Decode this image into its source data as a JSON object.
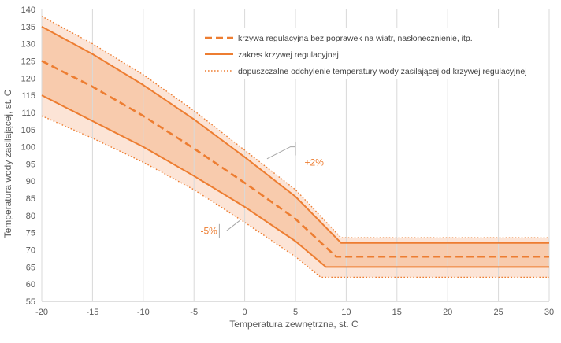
{
  "chart_data": {
    "type": "line",
    "xlabel": "Temperatura zewnętrzna, st. C",
    "ylabel": "Temperatura wody zasilającej, st. C",
    "xlim": [
      -20,
      30
    ],
    "ylim": [
      55,
      140
    ],
    "x_ticks": [
      -20,
      -15,
      -10,
      -5,
      0,
      5,
      10,
      15,
      20,
      25,
      30
    ],
    "y_ticks": [
      55,
      60,
      65,
      70,
      75,
      80,
      85,
      90,
      95,
      100,
      105,
      110,
      115,
      120,
      125,
      130,
      135,
      140
    ],
    "grid": "vertical",
    "legend_position": "top-right",
    "accent_color": "#ED7D31",
    "band_fill_color": "#F8CBAD",
    "outer_band_fill_color": "#FCE4D6",
    "series": [
      {
        "name": "krzywa regulacyjna bez poprawek na wiatr, nasłonecznienie, itp.",
        "style": "dashed",
        "x": [
          -20,
          -15,
          -10,
          -5,
          0,
          5,
          9,
          30
        ],
        "y": [
          125,
          117.5,
          109,
          99.5,
          89.5,
          79,
          68,
          68
        ]
      },
      {
        "name": "zakres krzywej regulacyjnej",
        "style": "solid",
        "x": [
          -20,
          -15,
          -10,
          -5,
          0,
          5,
          9.5,
          30
        ],
        "y": [
          135,
          127,
          118,
          108,
          97,
          85.5,
          72,
          72
        ]
      },
      {
        "name": "",
        "style": "solid",
        "x": [
          -20,
          -15,
          -10,
          -5,
          0,
          5,
          8,
          30
        ],
        "y": [
          115,
          107.5,
          100,
          91.5,
          82.5,
          72.5,
          65,
          65
        ]
      },
      {
        "name": "dopuszczalne odchylenie temperatury wody zasilającej od krzywej regulacyjnej",
        "style": "dotted",
        "x": [
          -20,
          -15,
          -10,
          -5,
          0,
          5,
          9.5,
          30
        ],
        "y": [
          138,
          130,
          121,
          110.5,
          99,
          87.5,
          73.5,
          73.5
        ]
      },
      {
        "name": "",
        "style": "dotted",
        "x": [
          -20,
          -15,
          -10,
          -5,
          0,
          5,
          7.5,
          30
        ],
        "y": [
          109,
          102.5,
          95.5,
          87.5,
          78,
          68,
          62,
          62
        ]
      }
    ],
    "annotations": [
      {
        "text": "+2%",
        "x": 4.5,
        "y": 95
      },
      {
        "text": "-5%",
        "x": -4.5,
        "y": 75.5
      }
    ]
  }
}
